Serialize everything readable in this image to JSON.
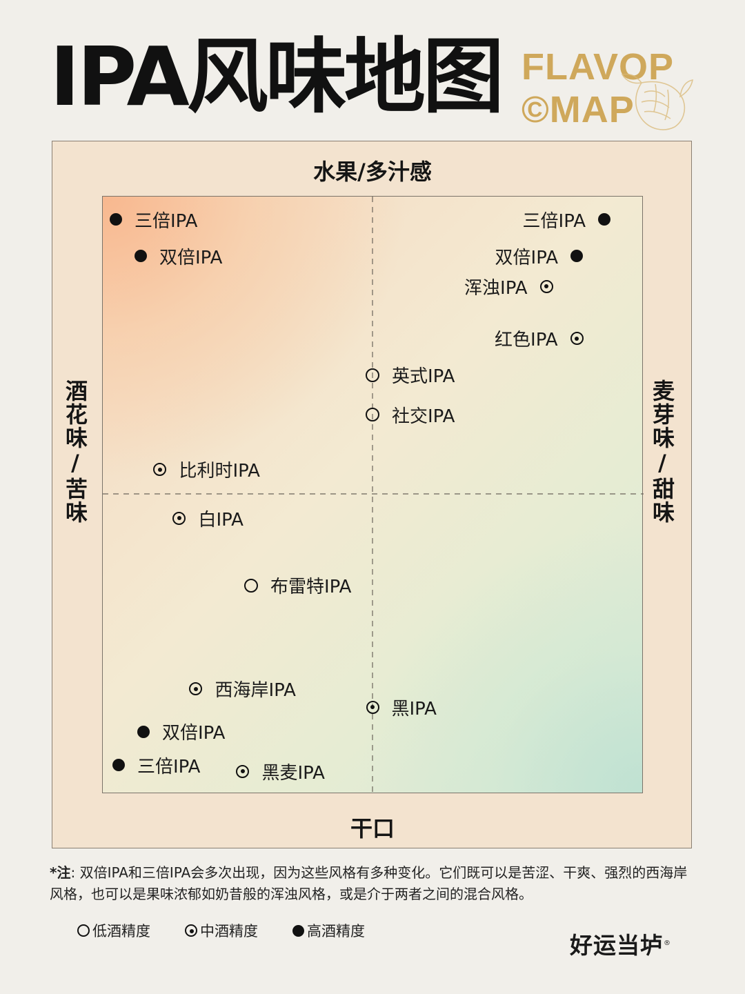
{
  "header": {
    "title": "IPA风味地图",
    "logo_line1": "FLAVOP",
    "logo_line2": "©MAP"
  },
  "axes": {
    "top": "水果/多汁感",
    "bottom": "干口",
    "left": "酒花味/苦味",
    "right": "麦芽味/甜味"
  },
  "chart_data": {
    "type": "scatter",
    "xlim": [
      -1,
      1
    ],
    "ylim": [
      -1,
      1
    ],
    "grid": "dashed center cross",
    "strength_levels": {
      "low": "低酒精度",
      "mid": "中酒精度",
      "high": "高酒精度"
    },
    "points": [
      {
        "label": "三倍IPA",
        "x": -0.93,
        "y": 0.9,
        "strength": "high",
        "side": "right"
      },
      {
        "label": "双倍IPA",
        "x": -0.84,
        "y": 0.78,
        "strength": "high",
        "side": "right"
      },
      {
        "label": "三倍IPA",
        "x": 0.84,
        "y": 0.9,
        "strength": "high",
        "side": "left"
      },
      {
        "label": "双倍IPA",
        "x": 0.74,
        "y": 0.78,
        "strength": "high",
        "side": "left"
      },
      {
        "label": "浑浊IPA",
        "x": 0.63,
        "y": 0.68,
        "strength": "mid",
        "side": "left"
      },
      {
        "label": "红色IPA",
        "x": 0.74,
        "y": 0.51,
        "strength": "mid",
        "side": "left"
      },
      {
        "label": "英式IPA",
        "x": 0.0,
        "y": 0.39,
        "strength": "low",
        "side": "right"
      },
      {
        "label": "社交IPA",
        "x": 0.0,
        "y": 0.26,
        "strength": "low",
        "side": "right"
      },
      {
        "label": "比利时IPA",
        "x": -0.77,
        "y": 0.08,
        "strength": "mid",
        "side": "right"
      },
      {
        "label": "白IPA",
        "x": -0.7,
        "y": -0.08,
        "strength": "mid",
        "side": "right"
      },
      {
        "label": "布雷特IPA",
        "x": -0.44,
        "y": -0.3,
        "strength": "low",
        "side": "right"
      },
      {
        "label": "西海岸IPA",
        "x": -0.64,
        "y": -0.64,
        "strength": "mid",
        "side": "right"
      },
      {
        "label": "黑IPA",
        "x": 0.0,
        "y": -0.7,
        "strength": "mid",
        "side": "right"
      },
      {
        "label": "双倍IPA",
        "x": -0.83,
        "y": -0.78,
        "strength": "high",
        "side": "right"
      },
      {
        "label": "三倍IPA",
        "x": -0.92,
        "y": -0.89,
        "strength": "high",
        "side": "right"
      },
      {
        "label": "黑麦IPA",
        "x": -0.47,
        "y": -0.91,
        "strength": "mid",
        "side": "right"
      }
    ]
  },
  "footnote": {
    "marker": "*注",
    "text": ": 双倍IPA和三倍IPA会多次出现，因为这些风格有多种变化。它们既可以是苦涩、干爽、强烈的西海岸风格，也可以是果味浓郁如奶昔般的浑浊风格，或是介于两者之间的混合风格。"
  },
  "legend": {
    "low": "低酒精度",
    "mid": "中酒精度",
    "high": "高酒精度"
  },
  "brand": {
    "name": "好运当垆",
    "mark": "®"
  }
}
